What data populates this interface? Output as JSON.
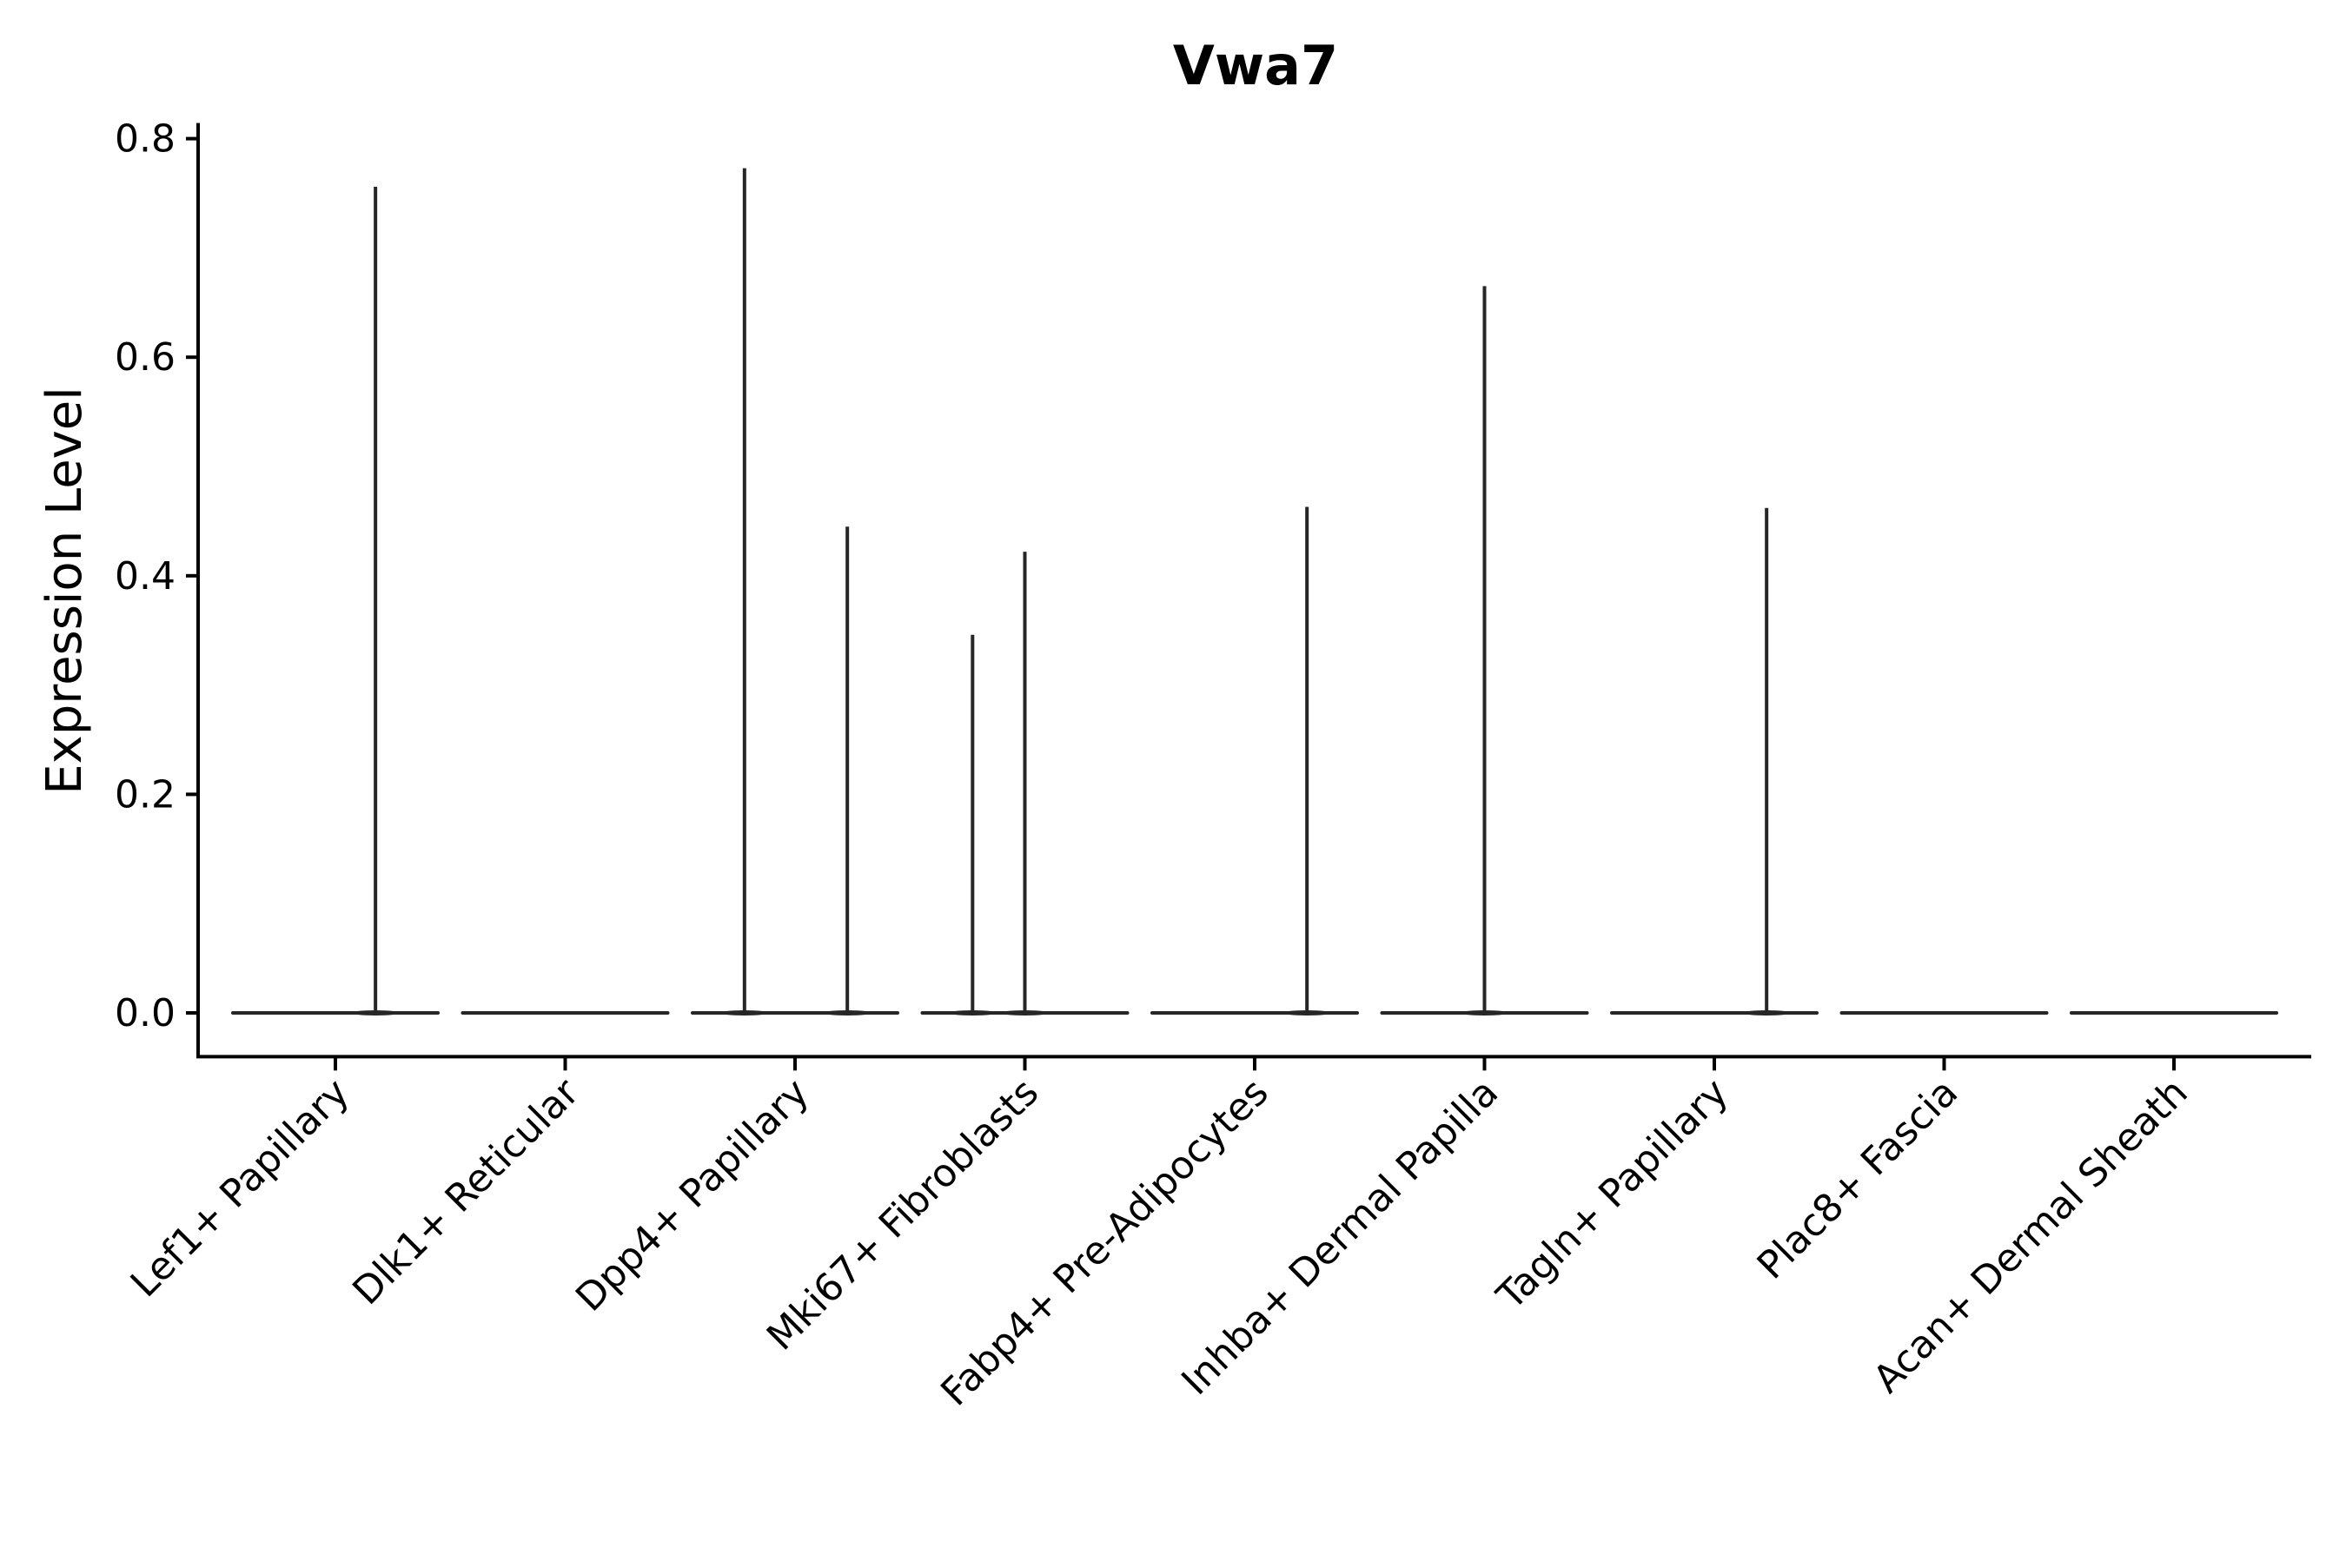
{
  "chart_data": {
    "type": "violin",
    "title": "Vwa7",
    "xlabel": "",
    "ylabel": "Expression Level",
    "ylim": [
      -0.04,
      0.8
    ],
    "yticks": [
      0.0,
      0.2,
      0.4,
      0.6,
      0.8
    ],
    "ytick_labels": [
      "0.0",
      "0.2",
      "0.4",
      "0.6",
      "0.8"
    ],
    "categories": [
      "Lef1+ Papillary",
      "Dlk1+ Reticular",
      "Dpp4+ Papillary",
      "Mki67+ Fibroblasts",
      "Fabp4+ Pre-Adipocytes",
      "Inhba+ Dermal Papilla",
      "Tagln+ Papillary",
      "Plac8+ Fascia",
      "Acan+ Dermal Sheath"
    ],
    "spikes": [
      [
        {
          "offset": 0.23,
          "max": 0.756
        }
      ],
      [],
      [
        {
          "offset": -0.29,
          "max": 0.773
        },
        {
          "offset": 0.3,
          "max": 0.445
        }
      ],
      [
        {
          "offset": -0.3,
          "max": 0.346
        },
        {
          "offset": 0.0,
          "max": 0.422
        }
      ],
      [
        {
          "offset": 0.3,
          "max": 0.463
        }
      ],
      [
        {
          "offset": 0.0,
          "max": 0.665
        }
      ],
      [
        {
          "offset": 0.3,
          "max": 0.462
        }
      ],
      [],
      []
    ],
    "grid": false,
    "legend": "none",
    "colors": {
      "stroke": "#262626",
      "axis": "#000000",
      "background": "#ffffff"
    }
  }
}
